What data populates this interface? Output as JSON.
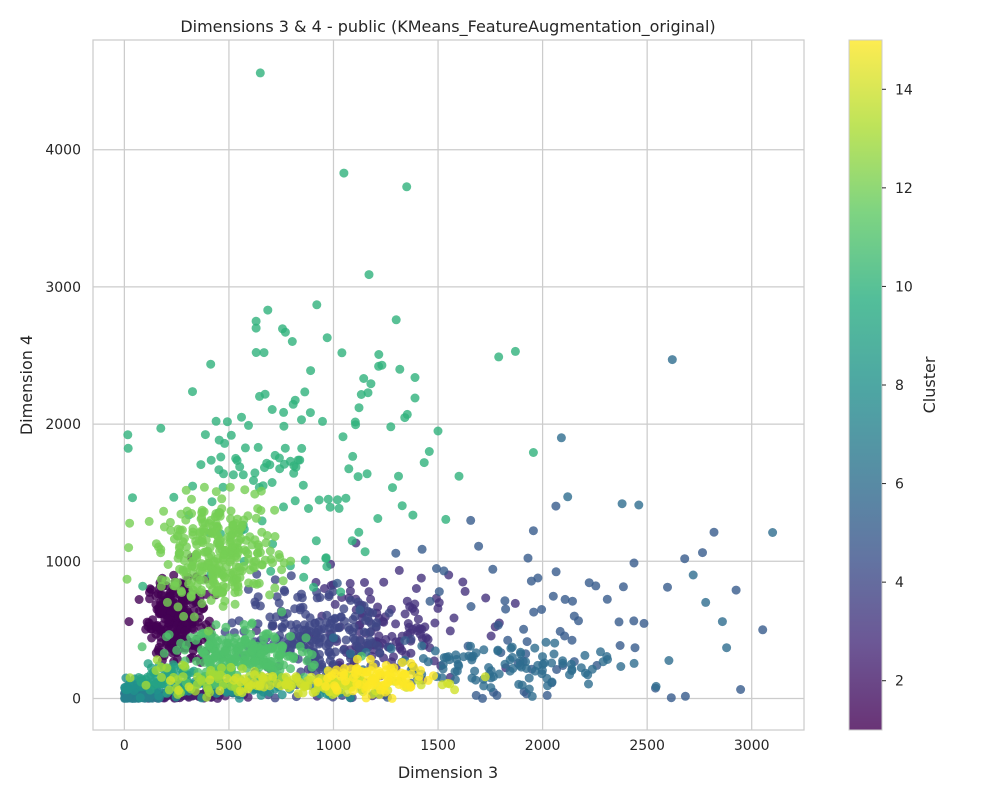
{
  "chart_data": {
    "type": "scatter",
    "title": "Dimensions 3 & 4 - public (KMeans_FeatureAugmentation_original)",
    "xlabel": "Dimension 3",
    "ylabel": "Dimension 4",
    "xlim": [
      -150,
      3250
    ],
    "ylim": [
      -230,
      4800
    ],
    "xticks": [
      0,
      500,
      1000,
      1500,
      2000,
      2500,
      3000
    ],
    "yticks": [
      0,
      1000,
      2000,
      3000,
      4000
    ],
    "grid": true,
    "colormap": "viridis",
    "point_alpha": 0.8,
    "colorbar": {
      "label": "Cluster",
      "range": [
        1,
        15
      ],
      "ticks": [
        2,
        4,
        6,
        8,
        10,
        12,
        14
      ]
    },
    "clusters": [
      {
        "cluster": 1,
        "center": [
          250,
          580
        ],
        "spread": [
          70,
          150
        ],
        "count": 260
      },
      {
        "cluster": 2,
        "center": [
          280,
          25
        ],
        "spread": [
          120,
          15
        ],
        "count": 90
      },
      {
        "cluster": 3,
        "center": [
          1200,
          480
        ],
        "spread": [
          230,
          220
        ],
        "count": 150
      },
      {
        "cluster": 4,
        "center": [
          900,
          420
        ],
        "spread": [
          180,
          170
        ],
        "count": 220
      },
      {
        "cluster": 5,
        "center": [
          2100,
          550
        ],
        "spread": [
          450,
          380
        ],
        "count": 75
      },
      {
        "cluster": 6,
        "center": [
          1800,
          250
        ],
        "spread": [
          380,
          90
        ],
        "count": 110
      },
      {
        "cluster": 7,
        "center": [
          60,
          20
        ],
        "spread": [
          60,
          20
        ],
        "count": 90
      },
      {
        "cluster": 8,
        "center": [
          500,
          80
        ],
        "spread": [
          320,
          40
        ],
        "count": 120
      },
      {
        "cluster": 9,
        "center": [
          200,
          160
        ],
        "spread": [
          80,
          50
        ],
        "count": 60
      },
      {
        "cluster": 10,
        "center": [
          780,
          1650
        ],
        "spread": [
          330,
          420
        ],
        "count": 130
      },
      {
        "cluster": 11,
        "center": [
          560,
          300
        ],
        "spread": [
          160,
          100
        ],
        "count": 240
      },
      {
        "cluster": 12,
        "center": [
          450,
          1050
        ],
        "spread": [
          140,
          190
        ],
        "count": 300
      },
      {
        "cluster": 13,
        "center": [
          380,
          140
        ],
        "spread": [
          200,
          60
        ],
        "count": 50
      },
      {
        "cluster": 14,
        "center": [
          900,
          110
        ],
        "spread": [
          250,
          40
        ],
        "count": 130
      },
      {
        "cluster": 15,
        "center": [
          1200,
          150
        ],
        "spread": [
          130,
          60
        ],
        "count": 90
      }
    ],
    "outliers": [
      {
        "x": 650,
        "y": 4560,
        "cluster": 10
      },
      {
        "x": 1050,
        "y": 3830,
        "cluster": 10
      },
      {
        "x": 1350,
        "y": 3730,
        "cluster": 10
      },
      {
        "x": 1170,
        "y": 3090,
        "cluster": 10
      },
      {
        "x": 920,
        "y": 2870,
        "cluster": 10
      },
      {
        "x": 630,
        "y": 2750,
        "cluster": 10
      },
      {
        "x": 1300,
        "y": 2760,
        "cluster": 10
      },
      {
        "x": 630,
        "y": 2700,
        "cluster": 10
      },
      {
        "x": 770,
        "y": 2670,
        "cluster": 10
      },
      {
        "x": 970,
        "y": 2630,
        "cluster": 10
      },
      {
        "x": 1040,
        "y": 2520,
        "cluster": 10
      },
      {
        "x": 1870,
        "y": 2530,
        "cluster": 10
      },
      {
        "x": 1790,
        "y": 2490,
        "cluster": 10
      },
      {
        "x": 2620,
        "y": 2470,
        "cluster": 6
      },
      {
        "x": 1390,
        "y": 2340,
        "cluster": 10
      },
      {
        "x": 1390,
        "y": 2190,
        "cluster": 10
      },
      {
        "x": 2090,
        "y": 1900,
        "cluster": 6
      },
      {
        "x": 2120,
        "y": 1470,
        "cluster": 6
      },
      {
        "x": 3100,
        "y": 1210,
        "cluster": 6
      },
      {
        "x": 2720,
        "y": 900,
        "cluster": 6
      },
      {
        "x": 2780,
        "y": 700,
        "cluster": 6
      },
      {
        "x": 2880,
        "y": 370,
        "cluster": 6
      },
      {
        "x": 2860,
        "y": 560,
        "cluster": 6
      },
      {
        "x": 2460,
        "y": 1410,
        "cluster": 6
      },
      {
        "x": 2380,
        "y": 1420,
        "cluster": 6
      },
      {
        "x": 1500,
        "y": 1950,
        "cluster": 10
      },
      {
        "x": 1600,
        "y": 1620,
        "cluster": 10
      }
    ]
  }
}
